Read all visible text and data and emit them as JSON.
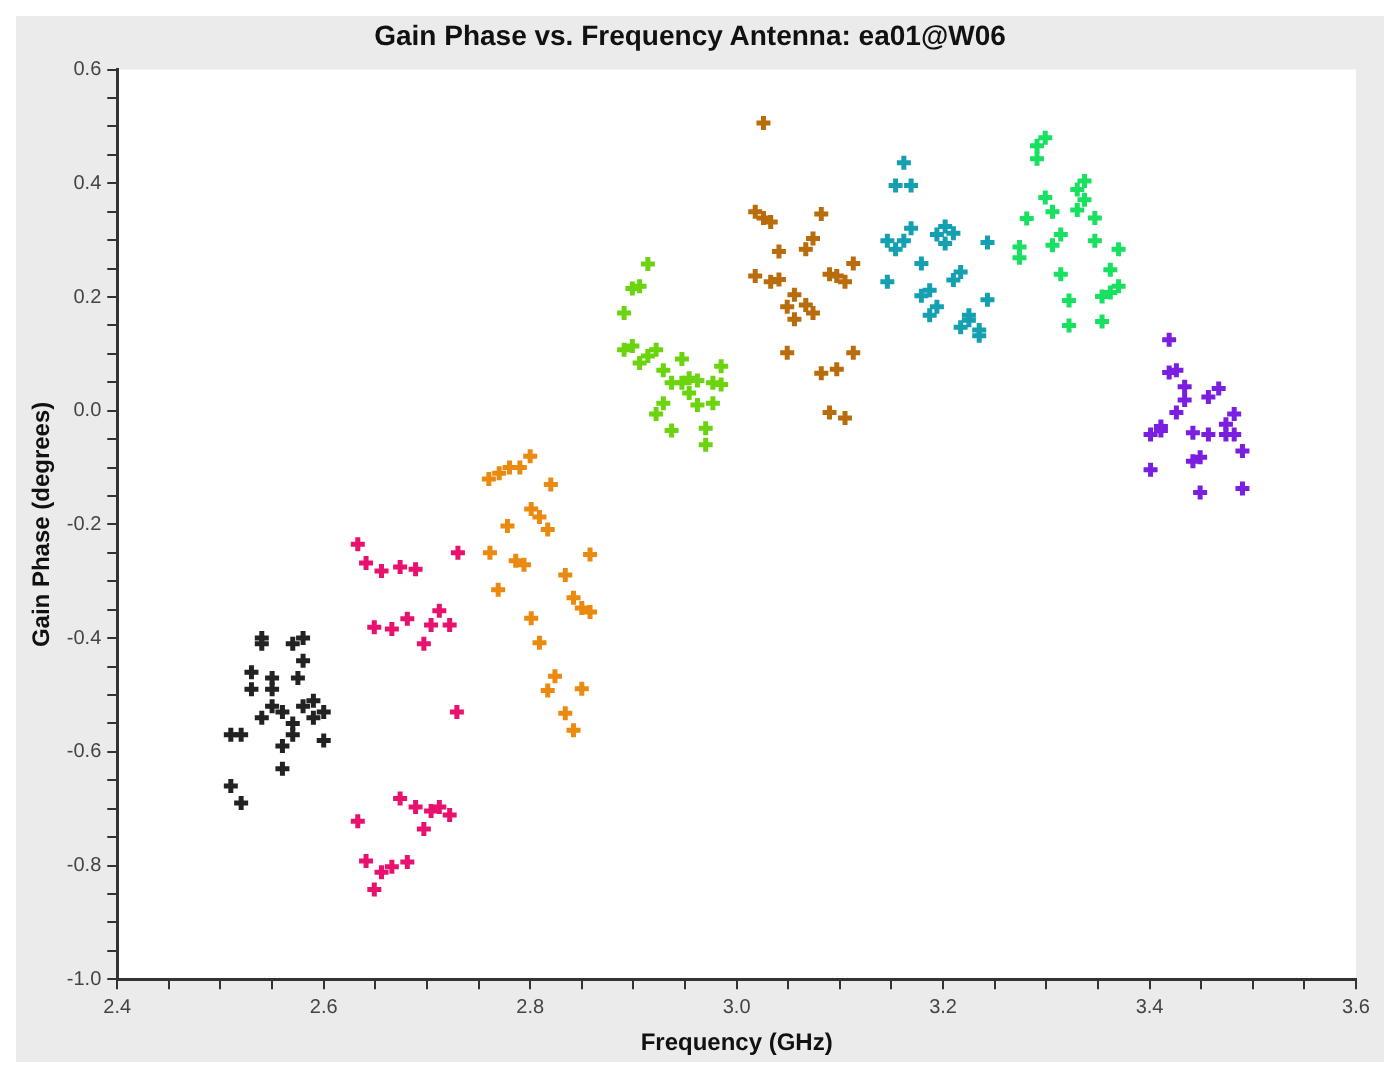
{
  "chart_data": {
    "type": "scatter",
    "title": "Gain Phase vs. Frequency Antenna: ea01@W06",
    "xlabel": "Frequency (GHz)",
    "ylabel": "Gain Phase (degrees)",
    "marker": "cross",
    "xlim": [
      2.4,
      3.6
    ],
    "ylim": [
      -1.0,
      0.6
    ],
    "xticks": [
      2.4,
      {
        "value": 2.45,
        "label": null
      },
      {
        "value": 2.5,
        "label": null
      },
      {
        "value": 2.55,
        "label": null
      },
      2.6,
      {
        "value": 2.65,
        "label": null
      },
      {
        "value": 2.7,
        "label": null
      },
      {
        "value": 2.75,
        "label": null
      },
      2.8,
      {
        "value": 2.85,
        "label": null
      },
      {
        "value": 2.9,
        "label": null
      },
      {
        "value": 2.95,
        "label": null
      },
      {
        "value": 3.0,
        "label": "3.0"
      },
      {
        "value": 3.05,
        "label": null
      },
      {
        "value": 3.1,
        "label": null
      },
      {
        "value": 3.15,
        "label": null
      },
      3.2,
      {
        "value": 3.25,
        "label": null
      },
      {
        "value": 3.3,
        "label": null
      },
      {
        "value": 3.35,
        "label": null
      },
      3.4,
      {
        "value": 3.45,
        "label": null
      },
      {
        "value": 3.5,
        "label": null
      },
      {
        "value": 3.55,
        "label": null
      },
      3.6
    ],
    "yticks": [
      {
        "value": -1,
        "label": "-1.0"
      },
      {
        "value": -0.95,
        "label": null
      },
      {
        "value": -0.9,
        "label": null
      },
      {
        "value": -0.85,
        "label": null
      },
      -0.8,
      {
        "value": -0.75,
        "label": null
      },
      {
        "value": -0.7,
        "label": null
      },
      {
        "value": -0.65,
        "label": null
      },
      -0.6,
      {
        "value": -0.55,
        "label": null
      },
      {
        "value": -0.5,
        "label": null
      },
      {
        "value": -0.45,
        "label": null
      },
      -0.4,
      {
        "value": -0.35,
        "label": null
      },
      {
        "value": -0.3,
        "label": null
      },
      {
        "value": -0.25,
        "label": null
      },
      -0.2,
      {
        "value": -0.15,
        "label": null
      },
      {
        "value": -0.1,
        "label": null
      },
      {
        "value": -0.05,
        "label": null
      },
      {
        "value": 0,
        "label": "0.0"
      },
      {
        "value": 0.05,
        "label": null
      },
      {
        "value": 0.1,
        "label": null
      },
      {
        "value": 0.15,
        "label": null
      },
      0.2,
      {
        "value": 0.25,
        "label": null
      },
      {
        "value": 0.3,
        "label": null
      },
      {
        "value": 0.35,
        "label": null
      },
      0.4,
      {
        "value": 0.45,
        "label": null
      },
      {
        "value": 0.5,
        "label": null
      },
      {
        "value": 0.55,
        "label": null
      },
      0.6
    ],
    "series": [
      {
        "color": "#222222",
        "x": [
          2.51,
          2.52,
          2.51,
          2.52,
          2.53,
          2.53,
          2.54,
          2.54,
          2.55,
          2.55,
          2.55,
          2.54,
          2.56,
          2.56,
          2.56,
          2.57,
          2.57,
          2.57,
          2.58,
          2.58,
          2.58,
          2.59,
          2.59,
          2.6,
          2.6,
          2.575
        ],
        "values": [
          -0.57,
          -0.57,
          -0.66,
          -0.69,
          -0.46,
          -0.49,
          -0.4,
          -0.41,
          -0.47,
          -0.49,
          -0.52,
          -0.54,
          -0.53,
          -0.59,
          -0.63,
          -0.57,
          -0.55,
          -0.41,
          -0.4,
          -0.44,
          -0.52,
          -0.51,
          -0.54,
          -0.53,
          -0.58,
          -0.47
        ]
      },
      {
        "color": "#e8116e",
        "x": [
          2.633,
          2.641,
          2.656,
          2.674,
          2.689,
          2.73,
          2.649,
          2.666,
          2.681,
          2.697,
          2.704,
          2.712,
          2.722,
          2.729,
          2.674,
          2.689,
          2.704,
          2.712,
          2.722,
          2.633,
          2.697,
          2.641,
          2.656,
          2.666,
          2.681,
          2.649
        ],
        "values": [
          -0.235,
          -0.268,
          -0.282,
          -0.275,
          -0.279,
          -0.25,
          -0.381,
          -0.384,
          -0.366,
          -0.41,
          -0.377,
          -0.352,
          -0.377,
          -0.53,
          -0.682,
          -0.697,
          -0.704,
          -0.697,
          -0.711,
          -0.722,
          -0.736,
          -0.792,
          -0.812,
          -0.802,
          -0.794,
          -0.842
        ]
      },
      {
        "color": "#ea8a10",
        "x": [
          2.76,
          2.77,
          2.78,
          2.79,
          2.8,
          2.82,
          2.801,
          2.809,
          2.817,
          2.778,
          2.761,
          2.786,
          2.794,
          2.858,
          2.769,
          2.834,
          2.842,
          2.85,
          2.858,
          2.801,
          2.809,
          2.824,
          2.817,
          2.85,
          2.834,
          2.842
        ],
        "values": [
          -0.12,
          -0.11,
          -0.1,
          -0.1,
          -0.08,
          -0.13,
          -0.173,
          -0.187,
          -0.209,
          -0.203,
          -0.25,
          -0.264,
          -0.271,
          -0.253,
          -0.315,
          -0.289,
          -0.329,
          -0.347,
          -0.354,
          -0.365,
          -0.408,
          -0.467,
          -0.492,
          -0.489,
          -0.532,
          -0.562
        ]
      },
      {
        "color": "#6cd40e",
        "x": [
          2.914,
          2.899,
          2.906,
          2.891,
          2.891,
          2.899,
          2.906,
          2.914,
          2.922,
          2.929,
          2.947,
          2.937,
          2.947,
          2.954,
          2.962,
          2.977,
          2.985,
          2.985,
          2.954,
          2.929,
          2.962,
          2.977,
          2.922,
          2.937,
          2.97,
          2.97
        ],
        "values": [
          0.258,
          0.215,
          0.219,
          0.172,
          0.107,
          0.114,
          0.084,
          0.096,
          0.107,
          0.071,
          0.091,
          0.049,
          0.049,
          0.057,
          0.053,
          0.049,
          0.046,
          0.078,
          0.031,
          0.013,
          0.01,
          0.013,
          -0.006,
          -0.035,
          -0.031,
          -0.06
        ]
      },
      {
        "color": "#b86c0c",
        "x": [
          3.026,
          3.018,
          3.026,
          3.033,
          3.082,
          3.041,
          3.074,
          3.067,
          3.113,
          3.018,
          3.033,
          3.041,
          3.09,
          3.097,
          3.105,
          3.056,
          3.049,
          3.067,
          3.056,
          3.074,
          3.049,
          3.113,
          3.097,
          3.082,
          3.09,
          3.105
        ],
        "values": [
          0.506,
          0.35,
          0.339,
          0.332,
          0.346,
          0.28,
          0.303,
          0.284,
          0.259,
          0.237,
          0.227,
          0.231,
          0.24,
          0.237,
          0.227,
          0.204,
          0.183,
          0.186,
          0.161,
          0.172,
          0.102,
          0.102,
          0.073,
          0.066,
          -0.003,
          -0.013
        ]
      },
      {
        "color": "#14a0b0",
        "x": [
          3.162,
          3.154,
          3.169,
          3.169,
          3.146,
          3.162,
          3.154,
          3.202,
          3.194,
          3.21,
          3.202,
          3.243,
          3.179,
          3.146,
          3.217,
          3.21,
          3.187,
          3.179,
          3.194,
          3.187,
          3.243,
          3.225,
          3.225,
          3.217,
          3.235,
          3.235
        ],
        "values": [
          0.436,
          0.396,
          0.396,
          0.321,
          0.299,
          0.299,
          0.284,
          0.324,
          0.31,
          0.312,
          0.294,
          0.296,
          0.259,
          0.227,
          0.244,
          0.23,
          0.212,
          0.202,
          0.183,
          0.168,
          0.195,
          0.168,
          0.159,
          0.147,
          0.142,
          0.132
        ]
      },
      {
        "color": "#18e060",
        "x": [
          3.299,
          3.291,
          3.291,
          3.337,
          3.33,
          3.299,
          3.337,
          3.33,
          3.306,
          3.347,
          3.281,
          3.314,
          3.306,
          3.347,
          3.274,
          3.274,
          3.37,
          3.362,
          3.314,
          3.37,
          3.362,
          3.354,
          3.322,
          3.322,
          3.354
        ],
        "values": [
          0.48,
          0.466,
          0.443,
          0.404,
          0.389,
          0.375,
          0.371,
          0.353,
          0.35,
          0.339,
          0.338,
          0.31,
          0.291,
          0.299,
          0.288,
          0.269,
          0.284,
          0.248,
          0.24,
          0.219,
          0.208,
          0.201,
          0.194,
          0.15,
          0.157
        ]
      },
      {
        "color": "#7a1ee0",
        "x": [
          3.419,
          3.419,
          3.426,
          3.434,
          3.467,
          3.457,
          3.434,
          3.426,
          3.482,
          3.474,
          3.411,
          3.411,
          3.401,
          3.442,
          3.457,
          3.474,
          3.482,
          3.49,
          3.449,
          3.442,
          3.401,
          3.449,
          3.49
        ],
        "values": [
          0.125,
          0.067,
          0.071,
          0.042,
          0.039,
          0.024,
          0.019,
          -0.003,
          -0.006,
          -0.024,
          -0.028,
          -0.035,
          -0.042,
          -0.039,
          -0.042,
          -0.042,
          -0.042,
          -0.071,
          -0.082,
          -0.089,
          -0.104,
          -0.144,
          -0.137
        ]
      }
    ]
  }
}
